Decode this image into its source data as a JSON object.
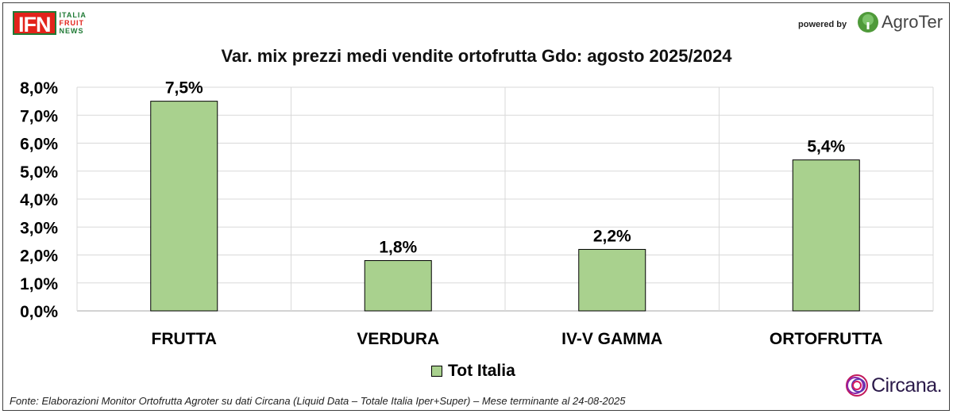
{
  "header": {
    "ifn_logo": {
      "main": "IFN",
      "line1": "ITALIA",
      "line2": "FRUIT",
      "line3": "NEWS"
    },
    "powered_by": "powered by",
    "agroter_logo": "AgroTer"
  },
  "footer": {
    "source": "Fonte: Elaborazioni Monitor Ortofrutta Agroter su dati Circana (Liquid Data – Totale Italia Iper+Super) – Mese terminante al 24-08-2025",
    "circana_logo": "Circana."
  },
  "colors": {
    "bar": "#a9d18e",
    "bar_border": "#000000",
    "grid": "#d9d9d9",
    "ifn_red": "#e2231a",
    "ifn_green": "#1f7a35"
  },
  "chart_data": {
    "type": "bar",
    "title": "Var. mix prezzi medi vendite ortofrutta Gdo: agosto 2025/2024",
    "categories": [
      "FRUTTA",
      "VERDURA",
      "IV-V GAMMA",
      "ORTOFRUTTA"
    ],
    "series": [
      {
        "name": "Tot Italia",
        "values": [
          7.5,
          1.8,
          2.2,
          5.4
        ],
        "labels": [
          "7,5%",
          "1,8%",
          "2,2%",
          "5,4%"
        ]
      }
    ],
    "ylim": [
      0,
      8
    ],
    "yticks": [
      0,
      1,
      2,
      3,
      4,
      5,
      6,
      7,
      8
    ],
    "ytick_labels": [
      "0,0%",
      "1,0%",
      "2,0%",
      "3,0%",
      "4,0%",
      "5,0%",
      "6,0%",
      "7,0%",
      "8,0%"
    ],
    "grid": true,
    "legend_position": "bottom"
  }
}
